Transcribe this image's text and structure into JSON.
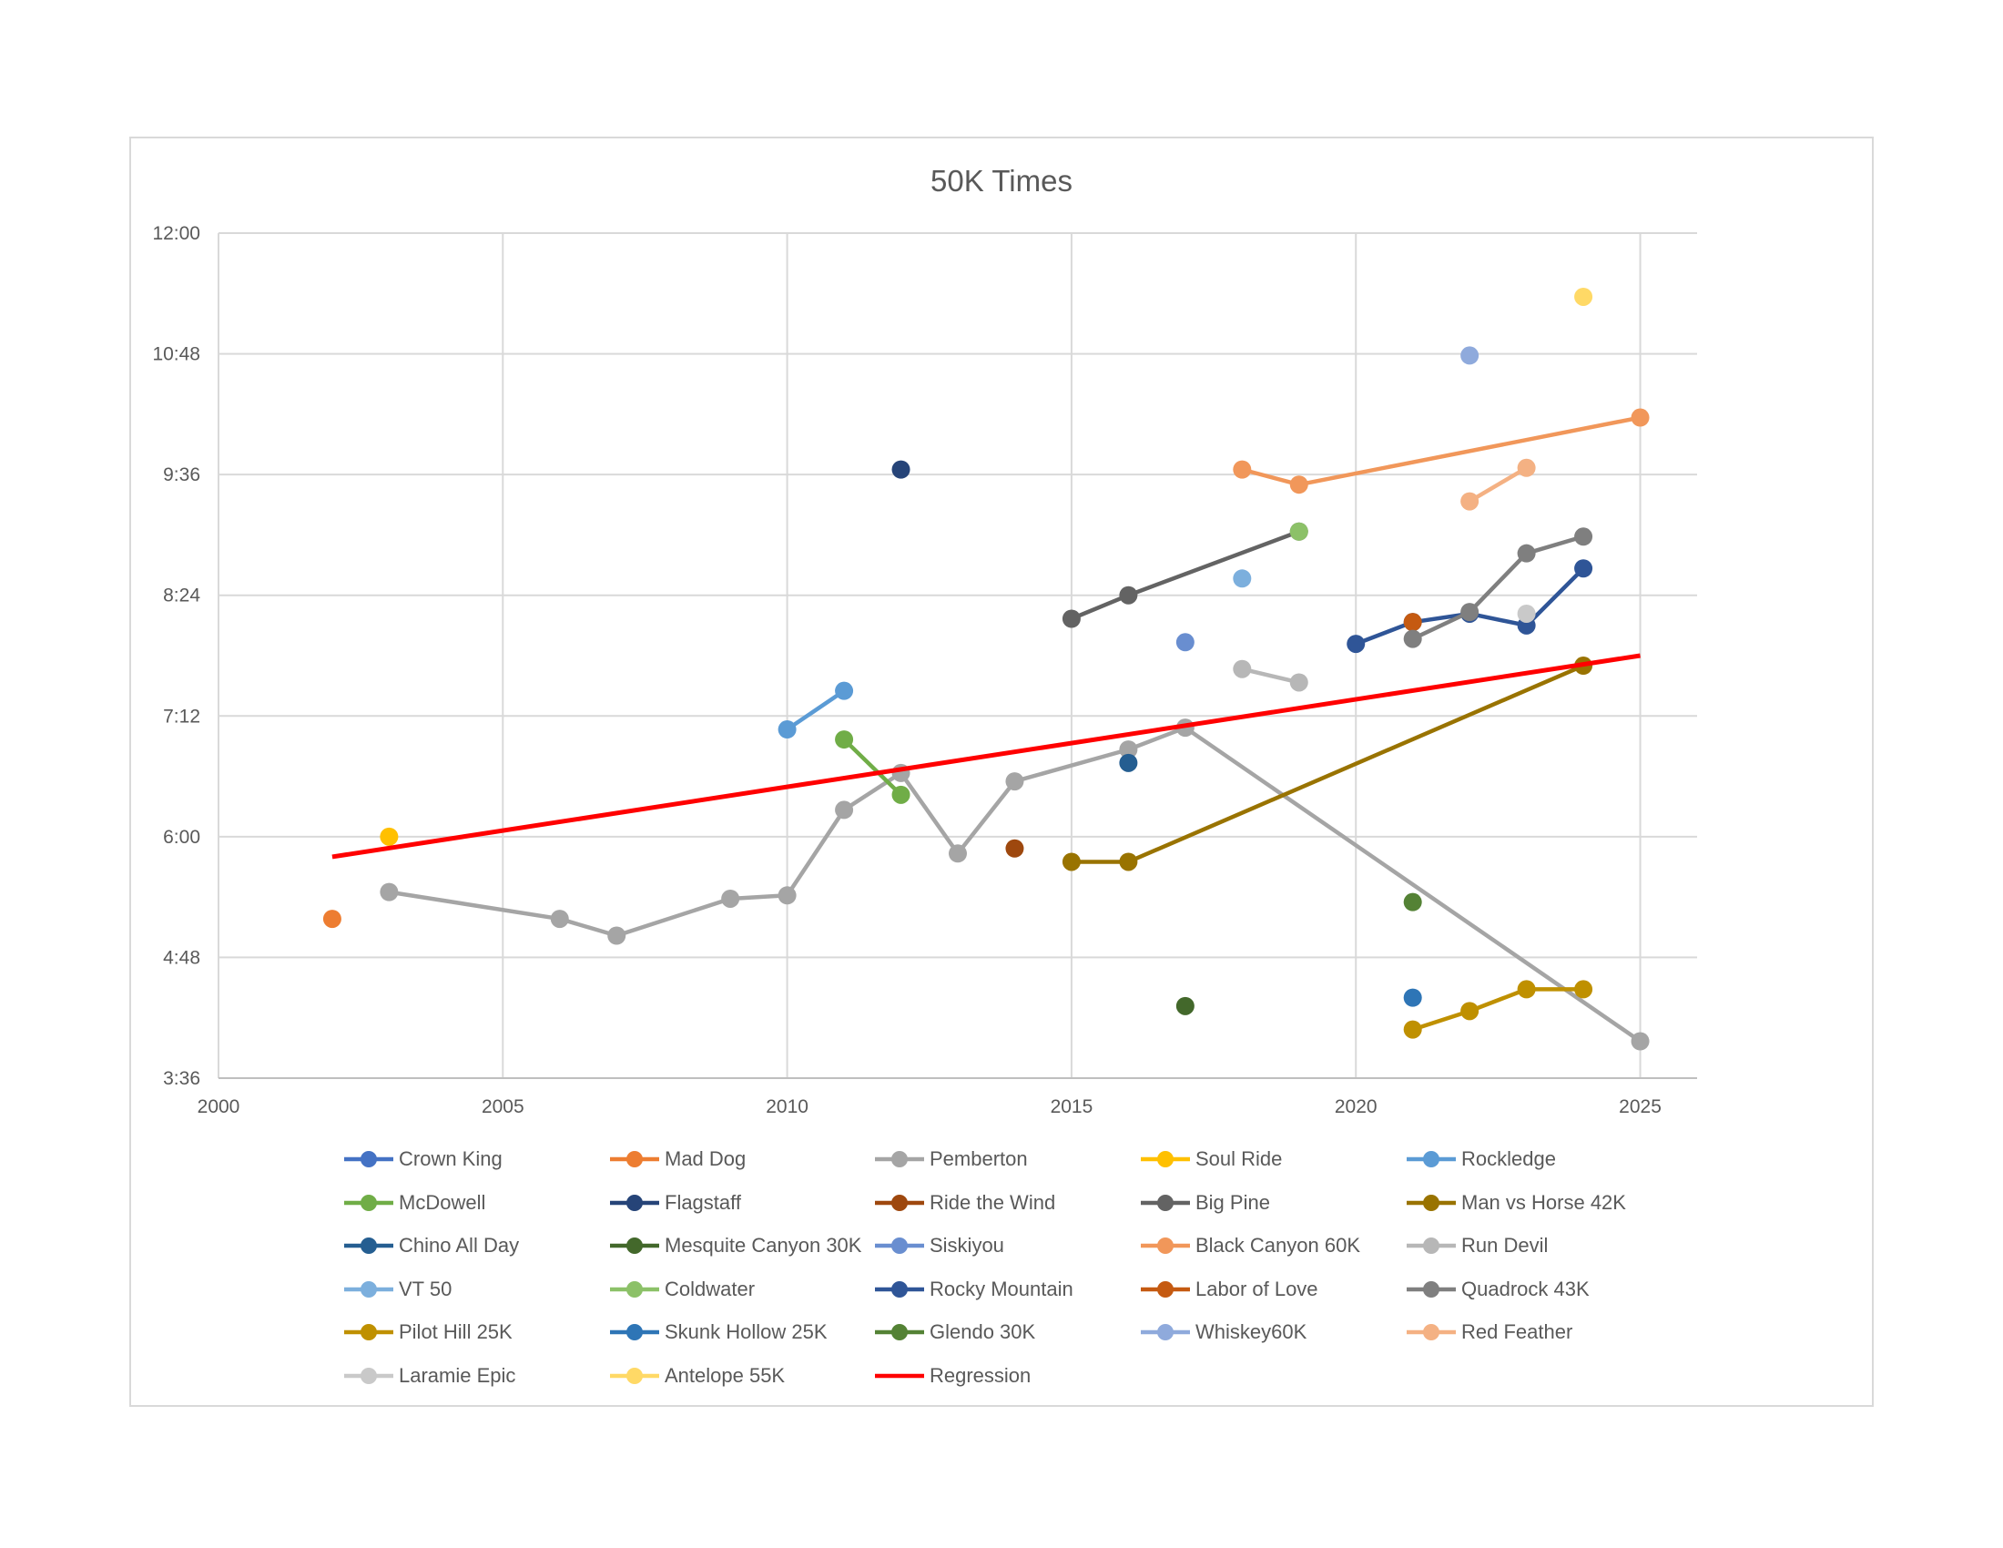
{
  "chart_data": {
    "type": "line",
    "title": "50K Times",
    "xlabel": "",
    "ylabel": "",
    "xlim": [
      2000,
      2026
    ],
    "ylim": [
      "3:36",
      "12:00"
    ],
    "x_ticks": [
      "2000",
      "2005",
      "2010",
      "2015",
      "2020",
      "2025"
    ],
    "y_ticks": [
      "3:36",
      "4:48",
      "6:00",
      "7:12",
      "8:24",
      "9:36",
      "10:48",
      "12:00"
    ],
    "grid": "on",
    "legend_position": "bottom",
    "series": [
      {
        "name": "Crown King",
        "color": "#4472C4",
        "points": []
      },
      {
        "name": "Mad Dog",
        "color": "#ED7D31",
        "points": [
          [
            2002,
            "5:11"
          ]
        ]
      },
      {
        "name": "Pemberton",
        "color": "#A5A5A5",
        "points": [
          [
            2003,
            "5:27"
          ],
          [
            2006,
            "5:11"
          ],
          [
            2007,
            "5:01"
          ],
          [
            2009,
            "5:23"
          ],
          [
            2010,
            "5:25"
          ],
          [
            2011,
            "6:16"
          ],
          [
            2012,
            "6:38"
          ],
          [
            2013,
            "5:50"
          ],
          [
            2014,
            "6:33"
          ],
          [
            2016,
            "6:52"
          ],
          [
            2017,
            "7:05"
          ],
          [
            2025,
            "3:58"
          ]
        ]
      },
      {
        "name": "Soul Ride",
        "color": "#FFC000",
        "points": [
          [
            2003,
            "6:00"
          ]
        ]
      },
      {
        "name": "Rockledge",
        "color": "#5B9BD5",
        "points": [
          [
            2010,
            "7:04"
          ],
          [
            2011,
            "7:27"
          ]
        ]
      },
      {
        "name": "McDowell",
        "color": "#70AD47",
        "points": [
          [
            2011,
            "6:58"
          ],
          [
            2012,
            "6:25"
          ]
        ]
      },
      {
        "name": "Flagstaff",
        "color": "#264478",
        "points": [
          [
            2012,
            "9:39"
          ]
        ]
      },
      {
        "name": "Ride the Wind",
        "color": "#9E480E",
        "points": [
          [
            2014,
            "5:53"
          ]
        ]
      },
      {
        "name": "Big Pine",
        "color": "#636363",
        "points": [
          [
            2015,
            "8:10"
          ],
          [
            2016,
            "8:24"
          ],
          [
            2019,
            "9:02"
          ]
        ]
      },
      {
        "name": "Man vs Horse 42K",
        "color": "#997300",
        "points": [
          [
            2015,
            "5:45"
          ],
          [
            2016,
            "5:45"
          ],
          [
            2024,
            "7:42"
          ]
        ]
      },
      {
        "name": "Chino All Day",
        "color": "#255E91",
        "points": [
          [
            2016,
            "6:44"
          ]
        ]
      },
      {
        "name": "Mesquite Canyon 30K",
        "color": "#43682B",
        "points": [
          [
            2017,
            "4:19"
          ]
        ]
      },
      {
        "name": "Siskiyou",
        "color": "#698ED0",
        "points": [
          [
            2017,
            "7:56"
          ]
        ]
      },
      {
        "name": "Black Canyon 60K",
        "color": "#F1975A",
        "points": [
          [
            2018,
            "9:39"
          ],
          [
            2019,
            "9:30"
          ],
          [
            2025,
            "10:10"
          ]
        ]
      },
      {
        "name": "Run Devil",
        "color": "#B7B7B7",
        "points": [
          [
            2018,
            "7:40"
          ],
          [
            2019,
            "7:32"
          ]
        ]
      },
      {
        "name": "VT 50",
        "color": "#7CAFDD",
        "points": [
          [
            2018,
            "8:34"
          ]
        ]
      },
      {
        "name": "Coldwater",
        "color": "#8CC168",
        "points": [
          [
            2019,
            "9:02"
          ]
        ]
      },
      {
        "name": "Rocky Mountain",
        "color": "#2F5597",
        "points": [
          [
            2020,
            "7:55"
          ],
          [
            2021,
            "8:08"
          ],
          [
            2022,
            "8:13"
          ],
          [
            2023,
            "8:06"
          ],
          [
            2024,
            "8:40"
          ]
        ]
      },
      {
        "name": "Labor of Love",
        "color": "#C55A11",
        "points": [
          [
            2021,
            "8:08"
          ]
        ]
      },
      {
        "name": "Quadrock 43K",
        "color": "#7F7F7F",
        "points": [
          [
            2021,
            "7:58"
          ],
          [
            2022,
            "8:14"
          ],
          [
            2023,
            "8:49"
          ],
          [
            2024,
            "8:59"
          ]
        ]
      },
      {
        "name": "Pilot Hill 25K",
        "color": "#BF9000",
        "points": [
          [
            2021,
            "4:05"
          ],
          [
            2022,
            "4:16"
          ],
          [
            2023,
            "4:29"
          ],
          [
            2024,
            "4:29"
          ]
        ]
      },
      {
        "name": "Skunk Hollow 25K",
        "color": "#2E75B6",
        "points": [
          [
            2021,
            "4:24"
          ]
        ]
      },
      {
        "name": "Glendo 30K",
        "color": "#548235",
        "points": [
          [
            2021,
            "5:21"
          ]
        ]
      },
      {
        "name": "Whiskey60K",
        "color": "#8FAADC",
        "points": [
          [
            2022,
            "10:47"
          ]
        ]
      },
      {
        "name": "Red Feather",
        "color": "#F4B183",
        "points": [
          [
            2022,
            "9:20"
          ],
          [
            2023,
            "9:40"
          ]
        ]
      },
      {
        "name": "Laramie Epic",
        "color": "#C9C9C9",
        "points": [
          [
            2023,
            "8:13"
          ]
        ]
      },
      {
        "name": "Antelope 55K",
        "color": "#FFD966",
        "points": [
          [
            2024,
            "11:22"
          ]
        ]
      },
      {
        "name": "Regression",
        "color": "#FF0000",
        "points": [
          [
            2002,
            "5:48"
          ],
          [
            2025,
            "7:48"
          ]
        ]
      }
    ]
  }
}
